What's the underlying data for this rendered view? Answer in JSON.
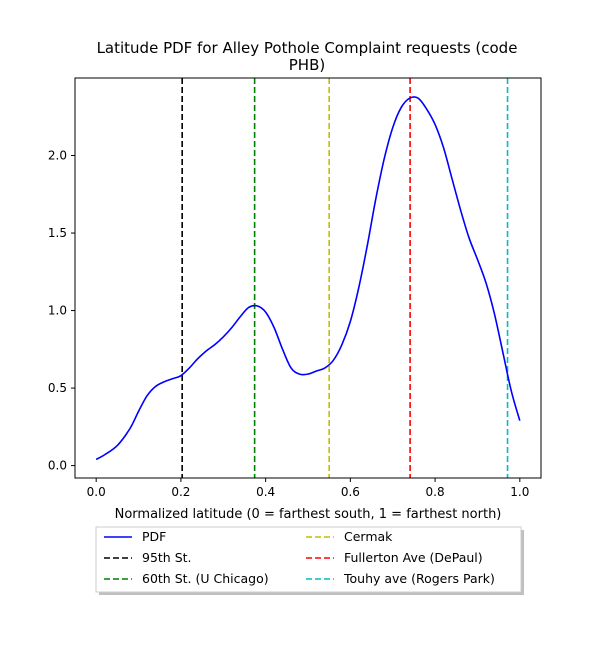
{
  "chart_data": {
    "type": "line",
    "title_line1": "Latitude PDF for Alley Pothole Complaint  requests (code",
    "title_line2": "PHB)",
    "xlabel": "Normalized latitude (0 = farthest south, 1 = farthest north)",
    "ylabel": "",
    "xlim": [
      -0.05,
      1.05
    ],
    "ylim": [
      -0.08,
      2.5
    ],
    "x_ticks": [
      0.0,
      0.2,
      0.4,
      0.6,
      0.8,
      1.0
    ],
    "x_tick_labels": [
      "0.0",
      "0.2",
      "0.4",
      "0.6",
      "0.8",
      "1.0"
    ],
    "y_ticks": [
      0.0,
      0.5,
      1.0,
      1.5,
      2.0
    ],
    "y_tick_labels": [
      "0.0",
      "0.5",
      "1.0",
      "1.5",
      "2.0"
    ],
    "grid": false,
    "legend_placement": "below plot",
    "series": [
      {
        "name": "PDF",
        "color": "#0000ff",
        "style": "solid",
        "x": [
          0.0,
          0.02,
          0.05,
          0.08,
          0.1,
          0.12,
          0.14,
          0.16,
          0.18,
          0.2,
          0.22,
          0.24,
          0.26,
          0.28,
          0.3,
          0.32,
          0.34,
          0.36,
          0.38,
          0.4,
          0.42,
          0.44,
          0.46,
          0.48,
          0.5,
          0.52,
          0.54,
          0.56,
          0.58,
          0.6,
          0.62,
          0.64,
          0.66,
          0.68,
          0.7,
          0.72,
          0.74,
          0.76,
          0.78,
          0.8,
          0.82,
          0.84,
          0.86,
          0.88,
          0.9,
          0.92,
          0.94,
          0.96,
          0.98,
          1.0
        ],
        "y": [
          0.04,
          0.07,
          0.13,
          0.24,
          0.35,
          0.45,
          0.51,
          0.54,
          0.56,
          0.58,
          0.63,
          0.69,
          0.74,
          0.78,
          0.83,
          0.89,
          0.96,
          1.02,
          1.03,
          0.99,
          0.89,
          0.75,
          0.63,
          0.59,
          0.59,
          0.61,
          0.63,
          0.68,
          0.78,
          0.93,
          1.15,
          1.42,
          1.72,
          1.98,
          2.18,
          2.31,
          2.37,
          2.37,
          2.3,
          2.2,
          2.05,
          1.85,
          1.65,
          1.47,
          1.33,
          1.18,
          0.98,
          0.73,
          0.48,
          0.29
        ]
      }
    ],
    "vlines": [
      {
        "name": "95th St.",
        "x": 0.203,
        "color": "#000000"
      },
      {
        "name": "60th St. (U Chicago)",
        "x": 0.374,
        "color": "#008000"
      },
      {
        "name": "Cermak",
        "x": 0.55,
        "color": "#bfbf00"
      },
      {
        "name": "Fullerton Ave (DePaul)",
        "x": 0.741,
        "color": "#ff0000"
      },
      {
        "name": "Touhy ave (Rogers Park)",
        "x": 0.971,
        "color": "#00bfbf"
      }
    ],
    "legend": {
      "col1": [
        "PDF",
        "95th St.",
        "60th St. (U Chicago)"
      ],
      "col2": [
        "Cermak",
        "Fullerton Ave (DePaul)",
        "Touhy ave (Rogers Park)"
      ]
    }
  }
}
